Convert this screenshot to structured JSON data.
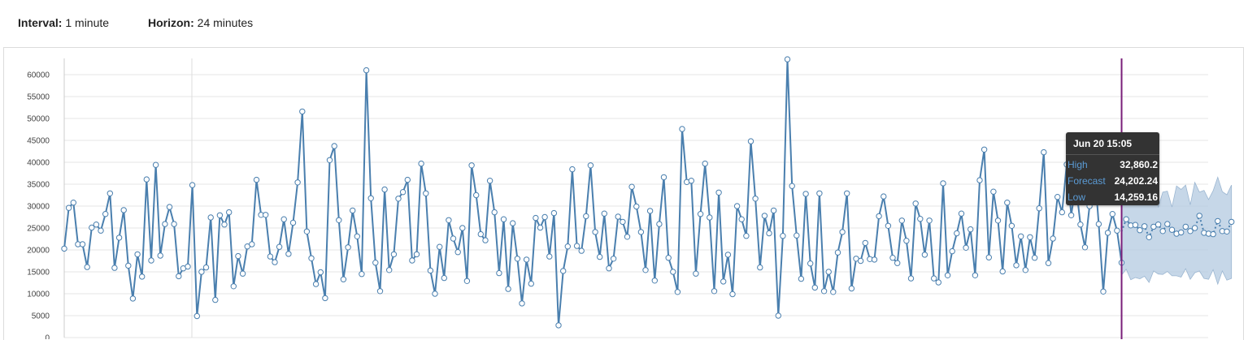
{
  "header": {
    "interval_label": "Interval:",
    "interval_value": "1 minute",
    "horizon_label": "Horizon:",
    "horizon_value": "24 minutes"
  },
  "tooltip": {
    "title": "Jun 20 15:05",
    "rows": [
      {
        "label": "High",
        "value": "32,860.2"
      },
      {
        "label": "Forecast",
        "value": "24,202.24"
      },
      {
        "label": "Low",
        "value": "14,259.16"
      }
    ]
  },
  "colors": {
    "series": "#4a7fae",
    "band": "#b3c9e0",
    "current_line": "#7a1f7a",
    "grid": "#e6e6e6"
  },
  "chart_data": {
    "type": "line",
    "title": "",
    "xlabel": "",
    "ylabel": "",
    "ylim": [
      0,
      63000
    ],
    "yticks": [
      0,
      5000,
      10000,
      15000,
      20000,
      25000,
      30000,
      35000,
      40000,
      45000,
      50000,
      55000,
      60000
    ],
    "grid": true,
    "series": [
      {
        "name": "",
        "values": [
          20300,
          29600,
          30800,
          21300,
          21300,
          16100,
          25100,
          25800,
          24400,
          28200,
          32900,
          15900,
          22800,
          29100,
          16400,
          8900,
          19000,
          13900,
          36100,
          17600,
          39400,
          18700,
          25900,
          29800,
          25900,
          14000,
          15800,
          16200,
          34800,
          4900,
          15000,
          16000,
          27400,
          8600,
          27900,
          25800,
          28600,
          11700,
          18600,
          14600,
          20800,
          21300,
          36000,
          28000,
          28000,
          18500,
          17200,
          20700,
          27000,
          19100,
          26200,
          35400,
          51600,
          24200,
          18100,
          12200,
          14900,
          9000,
          40500,
          43700,
          26800,
          13300,
          20600,
          29000,
          23100,
          14500,
          61000,
          31800,
          17100,
          10600,
          33800,
          15400,
          19000,
          31700,
          33200,
          36000,
          17600,
          19000,
          39700,
          32900,
          15300,
          10000,
          20700,
          13600,
          26800,
          22600,
          19500,
          25000,
          12900,
          39300,
          32500,
          23600,
          22200,
          35800,
          28600,
          14700,
          27000,
          11100,
          26100,
          18000,
          7800,
          17800,
          12300,
          27300,
          25100,
          27500,
          18500,
          28400,
          2800,
          15200,
          20800,
          38400,
          20900,
          19800,
          27700,
          39300,
          24100,
          18400,
          28300,
          15800,
          18000,
          27600,
          26400,
          23000,
          34400,
          29900,
          24100,
          15400,
          28900,
          13000,
          25900,
          36600,
          18200,
          15000,
          10400,
          47600,
          35500,
          35800,
          14600,
          28200,
          39700,
          27400,
          10600,
          33100,
          12800,
          18900,
          9900,
          30000,
          27000,
          23200,
          44800,
          31700,
          16000,
          27800,
          23800,
          29000,
          5000,
          23200,
          63500,
          34600,
          23300,
          13400,
          32800,
          16900,
          11400,
          32900,
          10600,
          15000,
          10400,
          19400,
          24100,
          32900,
          11200,
          18000,
          17500,
          21600,
          17900,
          17800,
          27700,
          32200,
          25500,
          18200,
          17000,
          26700,
          22100,
          13500,
          30600,
          27100,
          18900,
          26700,
          13500,
          12600,
          35200,
          14200,
          19700,
          23800,
          28300,
          20500,
          24700,
          14200,
          35900,
          42900,
          18300,
          33300,
          26700,
          15100,
          30800,
          25500,
          16500,
          23100,
          15400,
          22900,
          18200,
          29500,
          42300,
          17000,
          22600,
          32100,
          28600,
          39500,
          27900,
          35100,
          25800,
          20600,
          30000,
          39500,
          25900,
          10500,
          23900,
          28200,
          24400,
          17100
        ]
      },
      {
        "name": "Forecast",
        "values": [
          24200,
          27000,
          25600,
          25700,
          24500,
          25400,
          22900,
          25300,
          25800,
          24300,
          25900,
          24600,
          23700,
          24000,
          25300,
          24300,
          25000,
          27800,
          23900,
          23700,
          23600,
          26600,
          24300,
          24200,
          26400
        ]
      }
    ],
    "forecast_band": {
      "high": [
        32860,
        35800,
        31600,
        37300,
        31900,
        33500,
        32000,
        36300,
        29700,
        33200,
        33400,
        29800,
        34600,
        33800,
        34800,
        30300,
        35400,
        33200,
        33600,
        31500,
        33500,
        36600,
        33300,
        32600,
        34800
      ],
      "low": [
        14260,
        15600,
        13200,
        13700,
        13400,
        14000,
        12600,
        15200,
        14500,
        14400,
        15100,
        14100,
        14100,
        13800,
        15700,
        13300,
        14800,
        15200,
        13500,
        13300,
        15500,
        12200,
        15200,
        13100,
        13500
      ]
    }
  }
}
